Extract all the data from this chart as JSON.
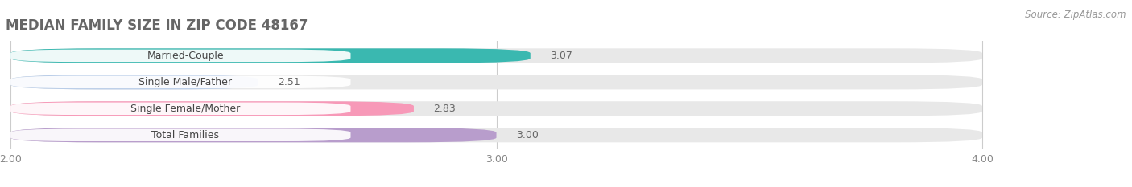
{
  "title": "MEDIAN FAMILY SIZE IN ZIP CODE 48167",
  "source": "Source: ZipAtlas.com",
  "categories": [
    "Married-Couple",
    "Single Male/Father",
    "Single Female/Mother",
    "Total Families"
  ],
  "values": [
    3.07,
    2.51,
    2.83,
    3.0
  ],
  "bar_colors": [
    "#3ab8b0",
    "#b8cce8",
    "#f799b8",
    "#b89dcc"
  ],
  "bar_bg_color": "#e8e8e8",
  "xlim": [
    2.0,
    4.0
  ],
  "xticks": [
    2.0,
    3.0,
    4.0
  ],
  "xtick_labels": [
    "2.00",
    "3.00",
    "4.00"
  ],
  "background_color": "#ffffff",
  "title_fontsize": 12,
  "label_fontsize": 9,
  "value_fontsize": 9,
  "source_fontsize": 8.5
}
